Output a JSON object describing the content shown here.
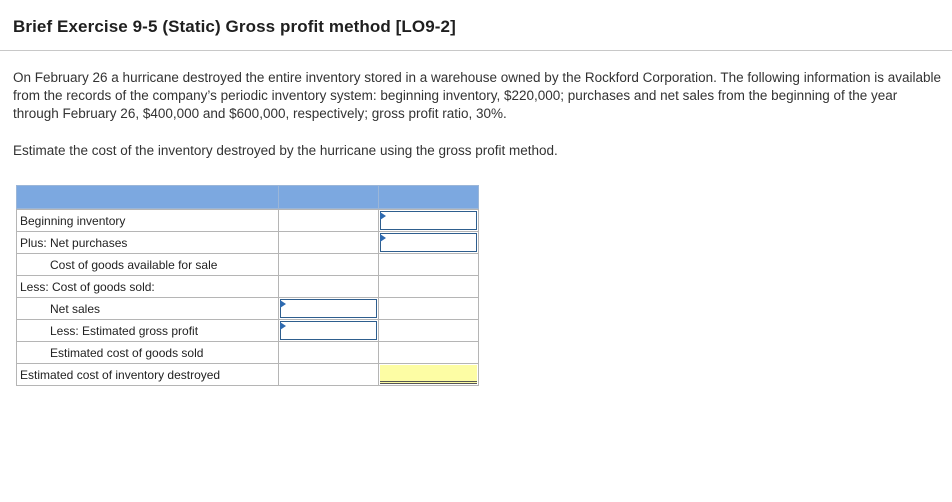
{
  "title": "Brief Exercise 9-5 (Static) Gross profit method [LO9-2]",
  "paragraph1": "On February 26 a hurricane destroyed the entire inventory stored in a warehouse owned by the Rockford Corporation. The following information is available from the records of the company’s periodic inventory system: beginning inventory, $220,000; purchases and net sales from the beginning of the year through February 26, $400,000 and $600,000, respectively; gross profit ratio, 30%.",
  "paragraph2": "Estimate the cost of the inventory destroyed by the hurricane using the gross profit method.",
  "worksheet": {
    "rows": [
      {
        "label": "Beginning inventory"
      },
      {
        "label": "Plus: Net purchases"
      },
      {
        "label": "Cost of goods available for sale"
      },
      {
        "label": "Less: Cost of goods sold:"
      },
      {
        "label": "Net sales"
      },
      {
        "label": "Less: Estimated gross profit"
      },
      {
        "label": "Estimated cost of goods sold"
      },
      {
        "label": "Estimated cost of inventory destroyed"
      }
    ]
  },
  "colors": {
    "header_blue": "#7ca8e0",
    "answer_yellow": "#fdfda4",
    "input_border": "#2e5e8e"
  }
}
